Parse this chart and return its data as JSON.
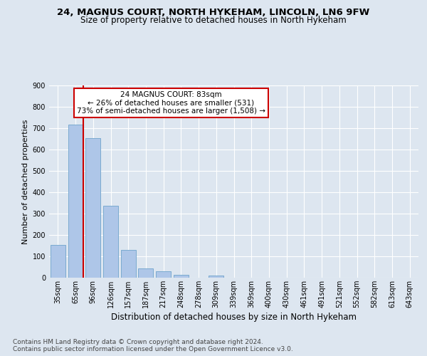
{
  "title1": "24, MAGNUS COURT, NORTH HYKEHAM, LINCOLN, LN6 9FW",
  "title2": "Size of property relative to detached houses in North Hykeham",
  "xlabel": "Distribution of detached houses by size in North Hykeham",
  "ylabel": "Number of detached properties",
  "bar_labels": [
    "35sqm",
    "65sqm",
    "96sqm",
    "126sqm",
    "157sqm",
    "187sqm",
    "217sqm",
    "248sqm",
    "278sqm",
    "309sqm",
    "339sqm",
    "369sqm",
    "400sqm",
    "430sqm",
    "461sqm",
    "491sqm",
    "521sqm",
    "552sqm",
    "582sqm",
    "613sqm",
    "643sqm"
  ],
  "bar_values": [
    152,
    716,
    655,
    337,
    130,
    42,
    30,
    13,
    0,
    9,
    0,
    0,
    0,
    0,
    0,
    0,
    0,
    0,
    0,
    0,
    0
  ],
  "bar_color": "#aec6e8",
  "bar_edge_color": "#7aaad0",
  "vline_color": "#cc0000",
  "vline_x": 1.45,
  "annotation_text": "24 MAGNUS COURT: 83sqm\n← 26% of detached houses are smaller (531)\n73% of semi-detached houses are larger (1,508) →",
  "annotation_box_facecolor": "#ffffff",
  "annotation_box_edgecolor": "#cc0000",
  "ylim": [
    0,
    900
  ],
  "yticks": [
    0,
    100,
    200,
    300,
    400,
    500,
    600,
    700,
    800,
    900
  ],
  "footnote": "Contains HM Land Registry data © Crown copyright and database right 2024.\nContains public sector information licensed under the Open Government Licence v3.0.",
  "bg_color": "#dde6f0",
  "plot_bg_color": "#dde6f0",
  "grid_color": "#ffffff",
  "title1_fontsize": 9.5,
  "title2_fontsize": 8.5,
  "ylabel_fontsize": 8,
  "xlabel_fontsize": 8.5,
  "tick_fontsize": 7,
  "annot_fontsize": 7.5,
  "footnote_fontsize": 6.5
}
